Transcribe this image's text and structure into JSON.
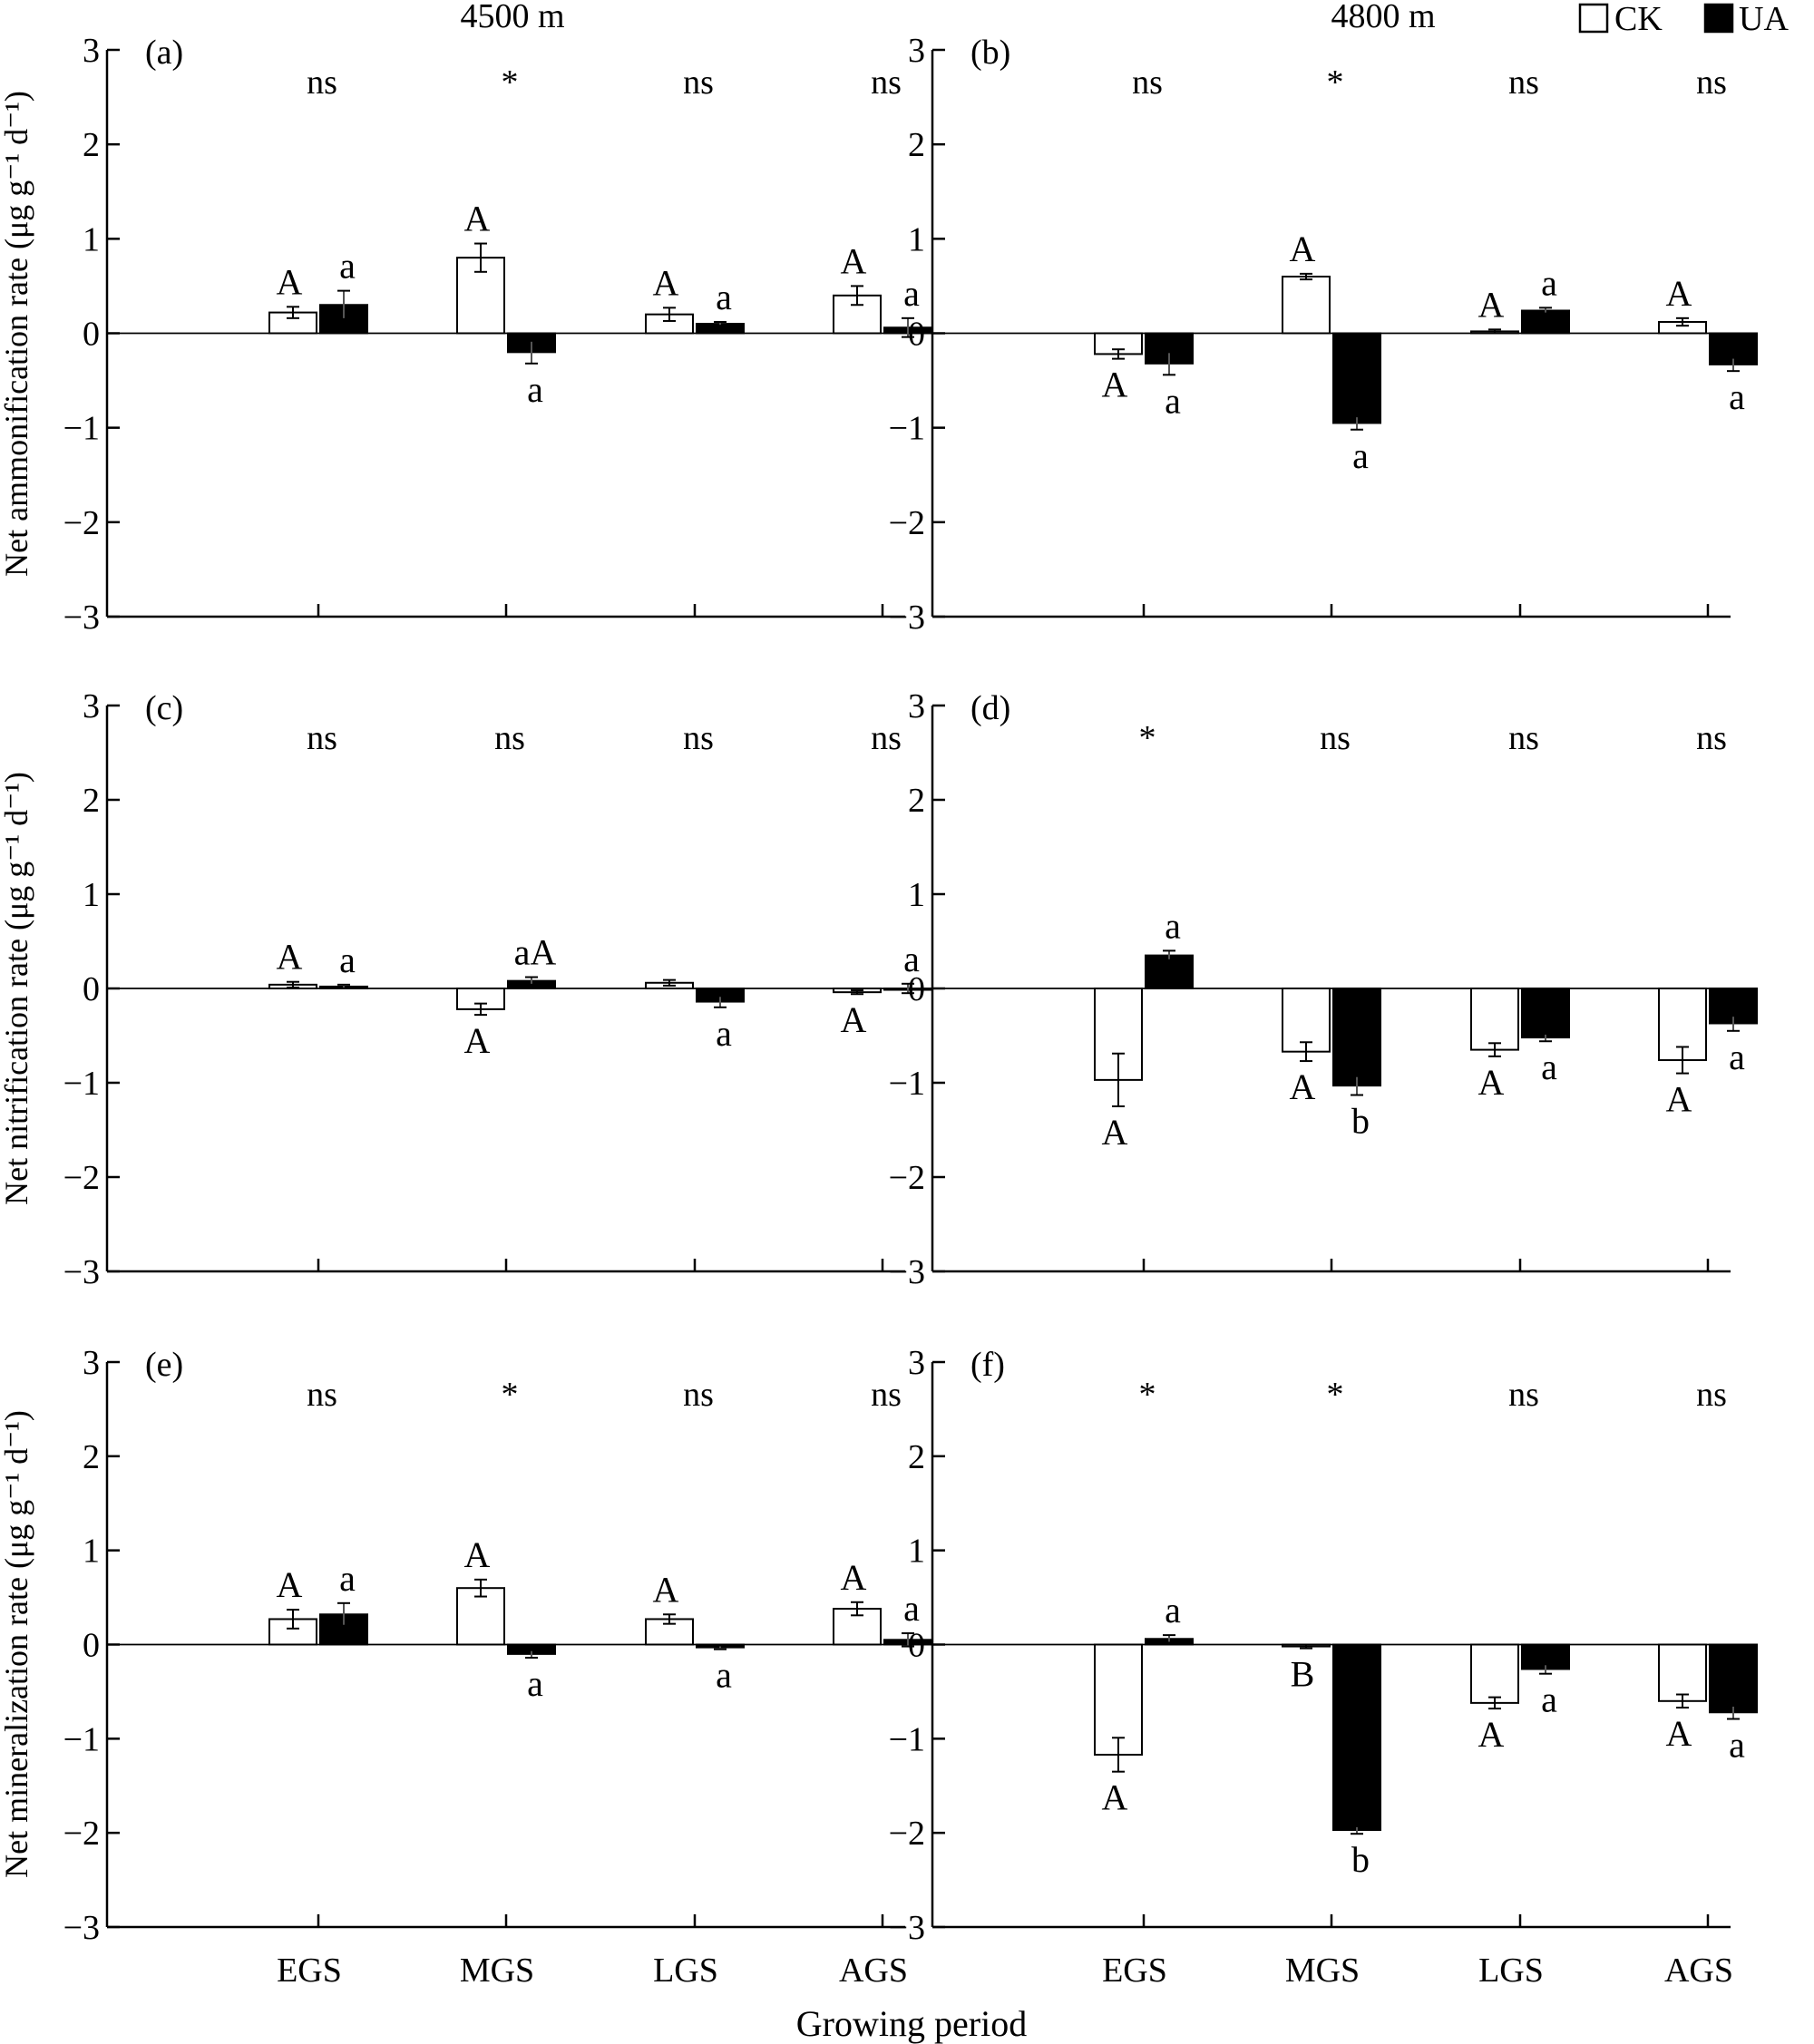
{
  "figure": {
    "column_titles": [
      "4500 m",
      "4800 m"
    ],
    "xlabel": "Growing period",
    "legend": [
      {
        "label": "CK",
        "color": "#ffffff"
      },
      {
        "label": "UA",
        "color": "#000000"
      }
    ],
    "row_ylabels": [
      "Net ammonification rate (μg g⁻¹ d⁻¹)",
      "Net nitrification rate (μg g⁻¹ d⁻¹)",
      "Net mineralization rate (μg g⁻¹ d⁻¹)"
    ]
  },
  "chart_data": [
    {
      "panel": "(a)",
      "type": "bar",
      "ylim": [
        -3,
        3
      ],
      "yticks": [
        3,
        2,
        1,
        0,
        -1,
        -2,
        -3
      ],
      "categories": [
        "EGS",
        "MGS",
        "LGS",
        "AGS"
      ],
      "significance": [
        "ns",
        "*",
        "ns",
        "ns"
      ],
      "series": [
        {
          "name": "CK",
          "values": [
            0.22,
            0.8,
            0.2,
            0.4
          ],
          "errors": [
            0.06,
            0.15,
            0.07,
            0.1
          ],
          "letters": [
            "A",
            "A",
            "A",
            "A"
          ]
        },
        {
          "name": "UA",
          "values": [
            0.3,
            -0.2,
            0.1,
            0.06
          ],
          "errors": [
            0.15,
            0.12,
            0.02,
            0.1
          ],
          "letters": [
            "a",
            "a",
            "a",
            "a"
          ]
        }
      ]
    },
    {
      "panel": "(b)",
      "type": "bar",
      "ylim": [
        -3,
        3
      ],
      "yticks": [
        3,
        2,
        1,
        0,
        -1,
        -2,
        -3
      ],
      "categories": [
        "EGS",
        "MGS",
        "LGS",
        "AGS"
      ],
      "significance": [
        "ns",
        "*",
        "ns",
        "ns"
      ],
      "series": [
        {
          "name": "CK",
          "values": [
            -0.22,
            0.6,
            0.02,
            0.12
          ],
          "errors": [
            0.05,
            0.03,
            0.02,
            0.04
          ],
          "letters": [
            "A",
            "A",
            "A",
            "A"
          ]
        },
        {
          "name": "UA",
          "values": [
            -0.32,
            -0.95,
            0.24,
            -0.33
          ],
          "errors": [
            0.12,
            0.07,
            0.03,
            0.07
          ],
          "letters": [
            "a",
            "a",
            "a",
            "a"
          ]
        }
      ]
    },
    {
      "panel": "(c)",
      "type": "bar",
      "ylim": [
        -3,
        3
      ],
      "yticks": [
        3,
        2,
        1,
        0,
        -1,
        -2,
        -3
      ],
      "categories": [
        "EGS",
        "MGS",
        "LGS",
        "AGS"
      ],
      "significance": [
        "ns",
        "ns",
        "ns",
        "ns"
      ],
      "series": [
        {
          "name": "CK",
          "values": [
            0.04,
            -0.22,
            0.06,
            -0.04
          ],
          "errors": [
            0.03,
            0.06,
            0.03,
            0.02
          ],
          "letters": [
            "A",
            "A",
            "",
            "A"
          ]
        },
        {
          "name": "UA",
          "values": [
            0.02,
            0.08,
            -0.14,
            0.0
          ],
          "errors": [
            0.02,
            0.04,
            0.06,
            0.05
          ],
          "letters": [
            "a",
            "aA",
            "a",
            "a"
          ]
        }
      ]
    },
    {
      "panel": "(d)",
      "type": "bar",
      "ylim": [
        -3,
        3
      ],
      "yticks": [
        3,
        2,
        1,
        0,
        -1,
        -2,
        -3
      ],
      "categories": [
        "EGS",
        "MGS",
        "LGS",
        "AGS"
      ],
      "significance": [
        "*",
        "ns",
        "ns",
        "ns"
      ],
      "series": [
        {
          "name": "CK",
          "values": [
            -0.97,
            -0.67,
            -0.65,
            -0.76
          ],
          "errors": [
            0.28,
            0.1,
            0.07,
            0.14
          ],
          "letters": [
            "A",
            "A",
            "A",
            "A"
          ]
        },
        {
          "name": "UA",
          "values": [
            0.35,
            -1.03,
            -0.52,
            -0.37
          ],
          "errors": [
            0.05,
            0.1,
            0.04,
            0.08
          ],
          "letters": [
            "a",
            "b",
            "a",
            "a"
          ]
        }
      ]
    },
    {
      "panel": "(e)",
      "type": "bar",
      "ylim": [
        -3,
        3
      ],
      "yticks": [
        3,
        2,
        1,
        0,
        -1,
        -2,
        -3
      ],
      "categories": [
        "EGS",
        "MGS",
        "LGS",
        "AGS"
      ],
      "significance": [
        "ns",
        "*",
        "ns",
        "ns"
      ],
      "series": [
        {
          "name": "CK",
          "values": [
            0.27,
            0.6,
            0.27,
            0.38
          ],
          "errors": [
            0.1,
            0.09,
            0.05,
            0.07
          ],
          "letters": [
            "A",
            "A",
            "A",
            "A"
          ]
        },
        {
          "name": "UA",
          "values": [
            0.32,
            -0.1,
            -0.03,
            0.05
          ],
          "errors": [
            0.12,
            0.04,
            0.02,
            0.07
          ],
          "letters": [
            "a",
            "a",
            "a",
            "a"
          ]
        }
      ]
    },
    {
      "panel": "(f)",
      "type": "bar",
      "ylim": [
        -3,
        3
      ],
      "yticks": [
        3,
        2,
        1,
        0,
        -1,
        -2,
        -3
      ],
      "categories": [
        "EGS",
        "MGS",
        "LGS",
        "AGS"
      ],
      "significance": [
        "*",
        "*",
        "ns",
        "ns"
      ],
      "series": [
        {
          "name": "CK",
          "values": [
            -1.17,
            -0.02,
            -0.62,
            -0.6
          ],
          "errors": [
            0.18,
            0.02,
            0.06,
            0.07
          ],
          "letters": [
            "A",
            "B",
            "A",
            "A"
          ]
        },
        {
          "name": "UA",
          "values": [
            0.06,
            -1.97,
            -0.26,
            -0.72
          ],
          "errors": [
            0.04,
            0.04,
            0.05,
            0.07
          ],
          "letters": [
            "a",
            "b",
            "a",
            "a"
          ]
        }
      ]
    }
  ]
}
